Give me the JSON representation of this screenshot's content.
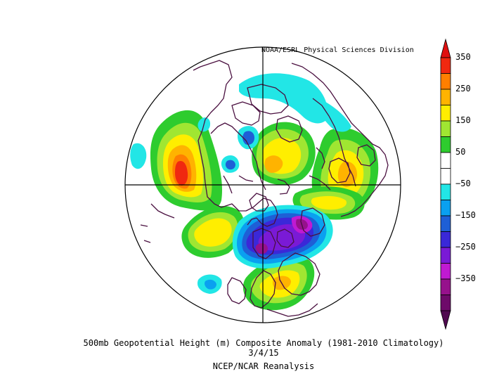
{
  "map": {
    "credit": "NOAA/ESRL Physical Sciences Division",
    "title": "500mb Geopotential Height (m) Composite Anomaly (1981-2010 Climatology)",
    "date": "3/4/15",
    "source": "NCEP/NCAR Reanalysis",
    "projection": "north-polar-stereographic",
    "colors": {
      "coast": "#4a1040",
      "graticule": "#000000"
    }
  },
  "colorbar": {
    "ticks": [
      "350",
      "250",
      "150",
      "50",
      "−50",
      "−150",
      "−250",
      "−350"
    ],
    "colors": [
      "#f02810",
      "#ff7f00",
      "#ffb300",
      "#ffee00",
      "#a0e632",
      "#2ecc2e",
      "#ffffff",
      "#ffffff",
      "#22e6e6",
      "#0aa0f0",
      "#1e5fd6",
      "#3a28d8",
      "#7a1ad6",
      "#c01ad2",
      "#96118c",
      "#6e0a6a"
    ],
    "top_arrow_color": "#e01010",
    "bottom_arrow_color": "#500a50"
  }
}
